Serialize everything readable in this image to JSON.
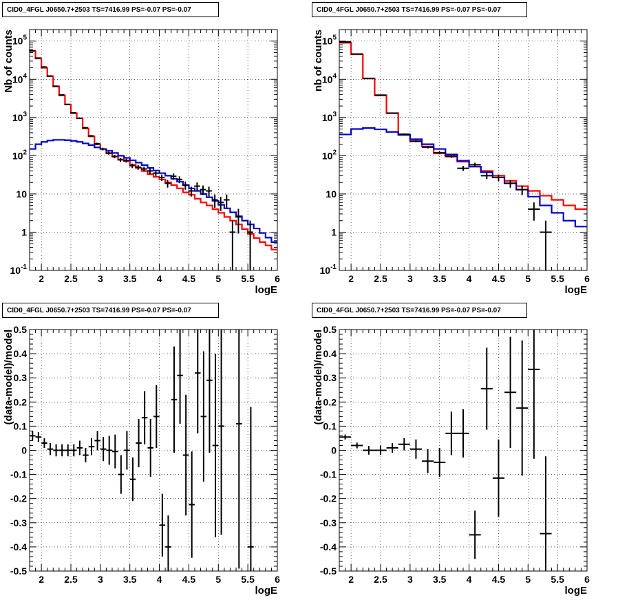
{
  "chart_data": [
    {
      "type": "histogram-log",
      "title": "CID0_4FGL J0650.7+2503 TS=7416.99 PS=-0.07 PS=-0.07",
      "xlabel": "logE",
      "ylabel": "Nb of counts",
      "xlim": [
        1.8,
        6.0
      ],
      "ylim": [
        0.1,
        200000
      ],
      "log_y": true,
      "grid": true,
      "x_ticks": [
        "2",
        "2.5",
        "3",
        "3.5",
        "4",
        "4.5",
        "5",
        "5.5",
        "6"
      ],
      "y_ticks": [
        "10^-1",
        "1",
        "10",
        "10^2",
        "10^3",
        "10^4",
        "10^5"
      ],
      "bin_edges": [
        1.8,
        1.9,
        2.0,
        2.1,
        2.2,
        2.3,
        2.4,
        2.5,
        2.6,
        2.7,
        2.8,
        2.9,
        3.0,
        3.1,
        3.2,
        3.3,
        3.4,
        3.5,
        3.6,
        3.7,
        3.8,
        3.9,
        4.0,
        4.1,
        4.2,
        4.3,
        4.4,
        4.5,
        4.6,
        4.7,
        4.8,
        4.9,
        5.0,
        5.1,
        5.2,
        5.3,
        5.4,
        5.5,
        5.6,
        5.7,
        5.8,
        5.9,
        6.0
      ],
      "series": [
        {
          "color": "#ff0000",
          "values": [
            55000,
            35000,
            20000,
            12000,
            6500,
            3800,
            2200,
            1300,
            950,
            520,
            320,
            200,
            150,
            115,
            95,
            80,
            72,
            58,
            48,
            40,
            33,
            28,
            24,
            20,
            17,
            14,
            11,
            9.5,
            7.5,
            6,
            5,
            4,
            3.2,
            2.5,
            2,
            1.6,
            1.2,
            0.9,
            0.7,
            0.55,
            0.45,
            0.35
          ]
        },
        {
          "color": "#0000cc",
          "values": [
            150,
            200,
            230,
            250,
            260,
            260,
            255,
            245,
            230,
            210,
            190,
            165,
            150,
            135,
            118,
            100,
            88,
            76,
            66,
            57,
            48,
            41,
            35,
            30,
            25,
            21,
            17,
            14,
            12,
            10,
            8.2,
            6.6,
            5.2,
            4.2,
            3.3,
            2.6,
            2.0,
            1.6,
            1.25,
            0.95,
            0.72,
            0.55
          ]
        }
      ],
      "points": [
        {
          "x": 1.84,
          "y": 56000
        },
        {
          "x": 1.94,
          "y": 36000
        },
        {
          "x": 2.04,
          "y": 21000
        },
        {
          "x": 2.14,
          "y": 12200
        },
        {
          "x": 2.24,
          "y": 6600
        },
        {
          "x": 2.34,
          "y": 3900
        },
        {
          "x": 2.44,
          "y": 2200
        },
        {
          "x": 2.54,
          "y": 1320
        },
        {
          "x": 2.64,
          "y": 960
        },
        {
          "x": 2.74,
          "y": 540
        },
        {
          "x": 2.84,
          "y": 330
        },
        {
          "x": 2.94,
          "y": 205
        },
        {
          "x": 3.04,
          "y": 150
        },
        {
          "x": 3.14,
          "y": 118
        },
        {
          "x": 3.24,
          "y": 96
        },
        {
          "x": 3.34,
          "y": 78
        },
        {
          "x": 3.44,
          "y": 75
        },
        {
          "x": 3.54,
          "y": 55
        },
        {
          "x": 3.64,
          "y": 50
        },
        {
          "x": 3.74,
          "y": 45
        },
        {
          "x": 3.84,
          "y": 40
        },
        {
          "x": 3.94,
          "y": 35
        },
        {
          "x": 4.04,
          "y": 27
        },
        {
          "x": 4.14,
          "y": 19
        },
        {
          "x": 4.24,
          "y": 29
        },
        {
          "x": 4.34,
          "y": 24
        },
        {
          "x": 4.44,
          "y": 17
        },
        {
          "x": 4.54,
          "y": 12
        },
        {
          "x": 4.64,
          "y": 16
        },
        {
          "x": 4.74,
          "y": 13
        },
        {
          "x": 4.84,
          "y": 12
        },
        {
          "x": 4.94,
          "y": 7
        },
        {
          "x": 5.04,
          "y": 6
        },
        {
          "x": 5.14,
          "y": 7
        },
        {
          "x": 5.24,
          "y": 1
        },
        {
          "x": 5.34,
          "y": 2.5
        },
        {
          "x": 5.54,
          "y": 1
        }
      ]
    },
    {
      "type": "histogram-log",
      "title": "CID0_4FGL J0650.7+2503 TS=7416.99 PS=-0.07 PS=-0.07",
      "xlabel": "logE",
      "ylabel": "nb of counts",
      "xlim": [
        1.8,
        6.0
      ],
      "ylim": [
        0.1,
        200000
      ],
      "log_y": true,
      "grid": true,
      "x_ticks": [
        "2",
        "2.5",
        "3",
        "3.5",
        "4",
        "4.5",
        "5",
        "5.5",
        "6"
      ],
      "y_ticks": [
        "10^-1",
        "1",
        "10",
        "10^2",
        "10^3",
        "10^4",
        "10^5"
      ],
      "bin_edges": [
        1.8,
        2.0,
        2.2,
        2.4,
        2.6,
        2.8,
        3.0,
        3.2,
        3.4,
        3.6,
        3.8,
        4.0,
        4.2,
        4.4,
        4.6,
        4.8,
        5.0,
        5.2,
        5.4,
        5.6,
        5.8,
        6.0
      ],
      "series": [
        {
          "color": "#ff0000",
          "values": [
            90000,
            45000,
            10500,
            3800,
            1300,
            360,
            240,
            175,
            115,
            95,
            70,
            52,
            40,
            30,
            22,
            16,
            12,
            9,
            7,
            5,
            4
          ]
        },
        {
          "color": "#0000cc",
          "values": [
            360,
            500,
            530,
            490,
            420,
            350,
            270,
            200,
            150,
            108,
            74,
            52,
            37,
            27,
            19,
            13,
            8.5,
            5,
            3.2,
            2.0,
            1.4
          ]
        }
      ],
      "points": [
        {
          "x": 1.9,
          "y": 95000
        },
        {
          "x": 2.1,
          "y": 46000
        },
        {
          "x": 2.3,
          "y": 10600
        },
        {
          "x": 2.5,
          "y": 3850
        },
        {
          "x": 2.7,
          "y": 1300
        },
        {
          "x": 2.9,
          "y": 365
        },
        {
          "x": 3.1,
          "y": 240
        },
        {
          "x": 3.3,
          "y": 168
        },
        {
          "x": 3.5,
          "y": 120
        },
        {
          "x": 3.7,
          "y": 98
        },
        {
          "x": 3.9,
          "y": 47
        },
        {
          "x": 4.1,
          "y": 58
        },
        {
          "x": 4.3,
          "y": 30
        },
        {
          "x": 4.5,
          "y": 27
        },
        {
          "x": 4.7,
          "y": 19
        },
        {
          "x": 4.9,
          "y": 13
        },
        {
          "x": 5.1,
          "y": 4
        },
        {
          "x": 5.3,
          "y": 1
        }
      ]
    },
    {
      "type": "scatter-errorbars",
      "title": "CID0_4FGL J0650.7+2503 TS=7416.99 PS=-0.07 PS=-0.07",
      "xlabel": "logE",
      "ylabel": "(data-model)/model",
      "xlim": [
        1.8,
        6.0
      ],
      "ylim": [
        -0.5,
        0.5
      ],
      "grid": true,
      "x_ticks": [
        "2",
        "2.5",
        "3",
        "3.5",
        "4",
        "4.5",
        "5",
        "5.5",
        "6"
      ],
      "y_ticks": [
        "-0.5",
        "-0.4",
        "-0.3",
        "-0.2",
        "-0.1",
        "0",
        "0.1",
        "0.2",
        "0.3",
        "0.4",
        "0.5"
      ],
      "xerr": 0.05,
      "points": [
        {
          "x": 1.85,
          "y": 0.06,
          "err": 0.02
        },
        {
          "x": 1.95,
          "y": 0.055,
          "err": 0.02
        },
        {
          "x": 2.05,
          "y": 0.03,
          "err": 0.02
        },
        {
          "x": 2.15,
          "y": 0.005,
          "err": 0.025
        },
        {
          "x": 2.25,
          "y": 0.0,
          "err": 0.025
        },
        {
          "x": 2.35,
          "y": 0.0,
          "err": 0.025
        },
        {
          "x": 2.45,
          "y": 0.0,
          "err": 0.025
        },
        {
          "x": 2.55,
          "y": 0.0,
          "err": 0.025
        },
        {
          "x": 2.65,
          "y": 0.01,
          "err": 0.03
        },
        {
          "x": 2.75,
          "y": -0.02,
          "err": 0.03
        },
        {
          "x": 2.85,
          "y": 0.015,
          "err": 0.035
        },
        {
          "x": 2.95,
          "y": 0.04,
          "err": 0.04
        },
        {
          "x": 3.05,
          "y": 0.005,
          "err": 0.05
        },
        {
          "x": 3.15,
          "y": 0.0,
          "err": 0.06
        },
        {
          "x": 3.25,
          "y": -0.005,
          "err": 0.07
        },
        {
          "x": 3.35,
          "y": -0.1,
          "err": 0.08
        },
        {
          "x": 3.45,
          "y": 0.0,
          "err": 0.08
        },
        {
          "x": 3.55,
          "y": -0.12,
          "err": 0.09
        },
        {
          "x": 3.65,
          "y": 0.03,
          "err": 0.1
        },
        {
          "x": 3.75,
          "y": 0.135,
          "err": 0.11
        },
        {
          "x": 3.85,
          "y": 0.01,
          "err": 0.12
        },
        {
          "x": 3.95,
          "y": 0.14,
          "err": 0.13
        },
        {
          "x": 4.05,
          "y": -0.31,
          "err": 0.13
        },
        {
          "x": 4.15,
          "y": -0.4,
          "err": 0.13
        },
        {
          "x": 4.25,
          "y": 0.21,
          "err": 0.22
        },
        {
          "x": 4.35,
          "y": 0.31,
          "err": 0.2
        },
        {
          "x": 4.45,
          "y": -0.02,
          "err": 0.25
        },
        {
          "x": 4.55,
          "y": -0.225,
          "err": 0.22
        },
        {
          "x": 4.65,
          "y": 0.32,
          "err": 0.25
        },
        {
          "x": 4.75,
          "y": 0.14,
          "err": 0.27
        },
        {
          "x": 4.85,
          "y": 0.29,
          "err": 0.3
        },
        {
          "x": 4.95,
          "y": 0.02,
          "err": 0.38
        },
        {
          "x": 5.05,
          "y": 0.1,
          "err": 0.45
        },
        {
          "x": 5.35,
          "y": 0.11,
          "err": 0.6
        },
        {
          "x": 5.55,
          "y": -0.4,
          "err": 0.58
        }
      ]
    },
    {
      "type": "scatter-errorbars",
      "title": "CID0_4FGL J0650.7+2503 TS=7416.99 PS=-0.07 PS=-0.07",
      "xlabel": "logE",
      "ylabel": "(data-model)/model",
      "xlim": [
        1.8,
        6.0
      ],
      "ylim": [
        -0.5,
        0.5
      ],
      "grid": true,
      "x_ticks": [
        "2",
        "2.5",
        "3",
        "3.5",
        "4",
        "4.5",
        "5",
        "5.5",
        "6"
      ],
      "y_ticks": [
        "-0.5",
        "-0.4",
        "-0.3",
        "-0.2",
        "-0.1",
        "0",
        "0.1",
        "0.2",
        "0.3",
        "0.4",
        "0.5"
      ],
      "xerr": 0.1,
      "points": [
        {
          "x": 1.9,
          "y": 0.055,
          "err": 0.01
        },
        {
          "x": 2.1,
          "y": 0.02,
          "err": 0.012
        },
        {
          "x": 2.3,
          "y": 0.0,
          "err": 0.018
        },
        {
          "x": 2.5,
          "y": 0.0,
          "err": 0.02
        },
        {
          "x": 2.7,
          "y": 0.01,
          "err": 0.02
        },
        {
          "x": 2.9,
          "y": 0.025,
          "err": 0.025
        },
        {
          "x": 3.1,
          "y": 0.005,
          "err": 0.04
        },
        {
          "x": 3.3,
          "y": -0.045,
          "err": 0.05
        },
        {
          "x": 3.5,
          "y": -0.05,
          "err": 0.06
        },
        {
          "x": 3.7,
          "y": 0.07,
          "err": 0.09
        },
        {
          "x": 3.9,
          "y": 0.07,
          "err": 0.1
        },
        {
          "x": 4.1,
          "y": -0.35,
          "err": 0.1
        },
        {
          "x": 4.3,
          "y": 0.255,
          "err": 0.17
        },
        {
          "x": 4.5,
          "y": -0.115,
          "err": 0.16
        },
        {
          "x": 4.7,
          "y": 0.24,
          "err": 0.23
        },
        {
          "x": 4.9,
          "y": 0.175,
          "err": 0.28
        },
        {
          "x": 5.1,
          "y": 0.335,
          "err": 0.37
        },
        {
          "x": 5.3,
          "y": -0.345,
          "err": 0.32
        }
      ]
    }
  ]
}
